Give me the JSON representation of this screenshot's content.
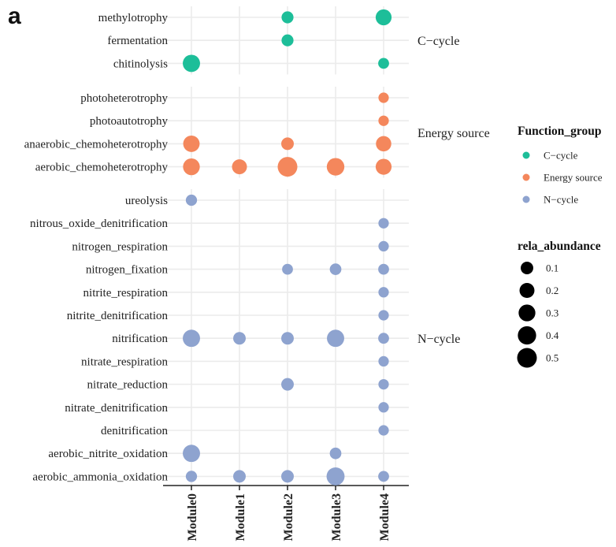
{
  "chart_data": {
    "type": "scatter",
    "panel_label": "a",
    "x_categories": [
      "Module0",
      "Module1",
      "Module2",
      "Module3",
      "Module4"
    ],
    "facets": [
      {
        "name": "C−cycle",
        "rows": [
          "methylotrophy",
          "fermentation",
          "chitinolysis"
        ]
      },
      {
        "name": "Energy source",
        "rows": [
          "photoheterotrophy",
          "photoautotrophy",
          "anaerobic_chemoheterotrophy",
          "aerobic_chemoheterotrophy"
        ]
      },
      {
        "name": "N−cycle",
        "rows": [
          "ureolysis",
          "nitrous_oxide_denitrification",
          "nitrogen_respiration",
          "nitrogen_fixation",
          "nitrite_respiration",
          "nitrite_denitrification",
          "nitrification",
          "nitrate_respiration",
          "nitrate_reduction",
          "nitrate_denitrification",
          "denitrification",
          "aerobic_nitrite_oxidation",
          "aerobic_ammonia_oxidation"
        ]
      }
    ],
    "colors": {
      "C−cycle": "#1dbe99",
      "Energy source": "#f4875c",
      "N−cycle": "#8ea3cf"
    },
    "points": [
      {
        "function": "methylotrophy",
        "module": "Module2",
        "group": "C−cycle",
        "rela_abundance": 0.08
      },
      {
        "function": "methylotrophy",
        "module": "Module4",
        "group": "C−cycle",
        "rela_abundance": 0.25
      },
      {
        "function": "fermentation",
        "module": "Module2",
        "group": "C−cycle",
        "rela_abundance": 0.08
      },
      {
        "function": "chitinolysis",
        "module": "Module0",
        "group": "C−cycle",
        "rela_abundance": 0.33
      },
      {
        "function": "chitinolysis",
        "module": "Module4",
        "group": "C−cycle",
        "rela_abundance": 0.05
      },
      {
        "function": "photoheterotrophy",
        "module": "Module4",
        "group": "Energy source",
        "rela_abundance": 0.04
      },
      {
        "function": "photoautotrophy",
        "module": "Module4",
        "group": "Energy source",
        "rela_abundance": 0.04
      },
      {
        "function": "anaerobic_chemoheterotrophy",
        "module": "Module0",
        "group": "Energy source",
        "rela_abundance": 0.28
      },
      {
        "function": "anaerobic_chemoheterotrophy",
        "module": "Module2",
        "group": "Energy source",
        "rela_abundance": 0.1
      },
      {
        "function": "anaerobic_chemoheterotrophy",
        "module": "Module4",
        "group": "Energy source",
        "rela_abundance": 0.22
      },
      {
        "function": "aerobic_chemoheterotrophy",
        "module": "Module0",
        "group": "Energy source",
        "rela_abundance": 0.3
      },
      {
        "function": "aerobic_chemoheterotrophy",
        "module": "Module1",
        "group": "Energy source",
        "rela_abundance": 0.2
      },
      {
        "function": "aerobic_chemoheterotrophy",
        "module": "Module2",
        "group": "Energy source",
        "rela_abundance": 0.5
      },
      {
        "function": "aerobic_chemoheterotrophy",
        "module": "Module3",
        "group": "Energy source",
        "rela_abundance": 0.35
      },
      {
        "function": "aerobic_chemoheterotrophy",
        "module": "Module4",
        "group": "Energy source",
        "rela_abundance": 0.25
      },
      {
        "function": "ureolysis",
        "module": "Module0",
        "group": "N−cycle",
        "rela_abundance": 0.06
      },
      {
        "function": "nitrous_oxide_denitrification",
        "module": "Module4",
        "group": "N−cycle",
        "rela_abundance": 0.04
      },
      {
        "function": "nitrogen_respiration",
        "module": "Module4",
        "group": "N−cycle",
        "rela_abundance": 0.04
      },
      {
        "function": "nitrogen_fixation",
        "module": "Module2",
        "group": "N−cycle",
        "rela_abundance": 0.05
      },
      {
        "function": "nitrogen_fixation",
        "module": "Module3",
        "group": "N−cycle",
        "rela_abundance": 0.07
      },
      {
        "function": "nitrogen_fixation",
        "module": "Module4",
        "group": "N−cycle",
        "rela_abundance": 0.05
      },
      {
        "function": "nitrite_respiration",
        "module": "Module4",
        "group": "N−cycle",
        "rela_abundance": 0.04
      },
      {
        "function": "nitrite_denitrification",
        "module": "Module4",
        "group": "N−cycle",
        "rela_abundance": 0.04
      },
      {
        "function": "nitrification",
        "module": "Module0",
        "group": "N−cycle",
        "rela_abundance": 0.33
      },
      {
        "function": "nitrification",
        "module": "Module1",
        "group": "N−cycle",
        "rela_abundance": 0.1
      },
      {
        "function": "nitrification",
        "module": "Module2",
        "group": "N−cycle",
        "rela_abundance": 0.1
      },
      {
        "function": "nitrification",
        "module": "Module3",
        "group": "N−cycle",
        "rela_abundance": 0.33
      },
      {
        "function": "nitrification",
        "module": "Module4",
        "group": "N−cycle",
        "rela_abundance": 0.05
      },
      {
        "function": "nitrate_respiration",
        "module": "Module4",
        "group": "N−cycle",
        "rela_abundance": 0.04
      },
      {
        "function": "nitrate_reduction",
        "module": "Module2",
        "group": "N−cycle",
        "rela_abundance": 0.1
      },
      {
        "function": "nitrate_reduction",
        "module": "Module4",
        "group": "N−cycle",
        "rela_abundance": 0.04
      },
      {
        "function": "nitrate_denitrification",
        "module": "Module4",
        "group": "N−cycle",
        "rela_abundance": 0.04
      },
      {
        "function": "denitrification",
        "module": "Module4",
        "group": "N−cycle",
        "rela_abundance": 0.04
      },
      {
        "function": "aerobic_nitrite_oxidation",
        "module": "Module0",
        "group": "N−cycle",
        "rela_abundance": 0.33
      },
      {
        "function": "aerobic_nitrite_oxidation",
        "module": "Module3",
        "group": "N−cycle",
        "rela_abundance": 0.07
      },
      {
        "function": "aerobic_ammonia_oxidation",
        "module": "Module0",
        "group": "N−cycle",
        "rela_abundance": 0.06
      },
      {
        "function": "aerobic_ammonia_oxidation",
        "module": "Module1",
        "group": "N−cycle",
        "rela_abundance": 0.1
      },
      {
        "function": "aerobic_ammonia_oxidation",
        "module": "Module2",
        "group": "N−cycle",
        "rela_abundance": 0.1
      },
      {
        "function": "aerobic_ammonia_oxidation",
        "module": "Module3",
        "group": "N−cycle",
        "rela_abundance": 0.38
      },
      {
        "function": "aerobic_ammonia_oxidation",
        "module": "Module4",
        "group": "N−cycle",
        "rela_abundance": 0.05
      }
    ],
    "legend": {
      "color_title": "Function_group",
      "color_items": [
        "C−cycle",
        "Energy source",
        "N−cycle"
      ],
      "size_title": "rela_abundance",
      "size_items": [
        0.1,
        0.2,
        0.3,
        0.4,
        0.5
      ],
      "size_item_labels": [
        "0.1",
        "0.2",
        "0.3",
        "0.4",
        "0.5"
      ],
      "size_key_color": "#000000",
      "position": "right"
    },
    "grid": true
  }
}
